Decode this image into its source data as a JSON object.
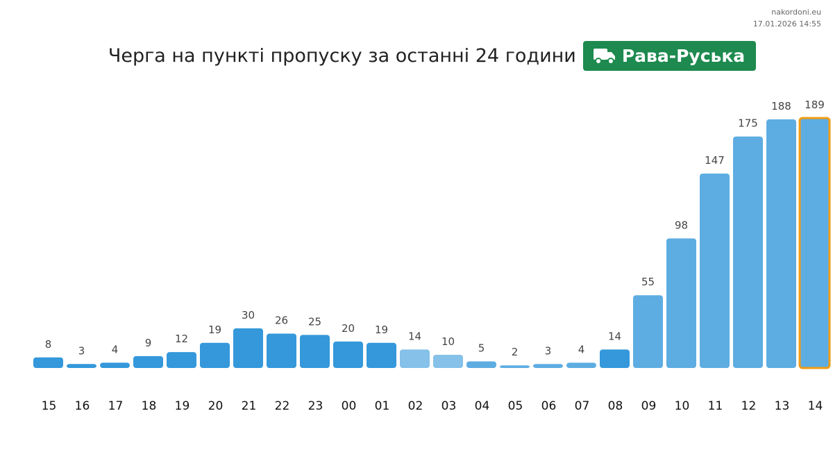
{
  "site": "nakordoni.eu",
  "timestamp": "17.01.2026 14:55",
  "chart_data": {
    "type": "bar",
    "title": "Черга на пункті пропуску за останні 24 години",
    "badge": "Рава-Руська",
    "categories": [
      "15",
      "16",
      "17",
      "18",
      "19",
      "20",
      "21",
      "22",
      "23",
      "00",
      "01",
      "02",
      "03",
      "04",
      "05",
      "06",
      "07",
      "08",
      "09",
      "10",
      "11",
      "12",
      "13",
      "14"
    ],
    "values": [
      8,
      3,
      4,
      9,
      12,
      19,
      30,
      26,
      25,
      20,
      19,
      14,
      10,
      5,
      2,
      3,
      4,
      14,
      55,
      98,
      147,
      175,
      188,
      189
    ],
    "colors": [
      "#3498db",
      "#3498db",
      "#3498db",
      "#3498db",
      "#3498db",
      "#3498db",
      "#3498db",
      "#3498db",
      "#3498db",
      "#3498db",
      "#3498db",
      "#85c1e9",
      "#85c1e9",
      "#5dade2",
      "#5dade2",
      "#5dade2",
      "#5dade2",
      "#3498db",
      "#5dade2",
      "#5dade2",
      "#5dade2",
      "#5dade2",
      "#5dade2",
      "#5dade2"
    ],
    "edge_colors": [
      null,
      null,
      null,
      null,
      null,
      null,
      null,
      null,
      null,
      null,
      null,
      null,
      null,
      null,
      null,
      null,
      null,
      null,
      null,
      null,
      null,
      null,
      null,
      "#f39c12"
    ]
  }
}
